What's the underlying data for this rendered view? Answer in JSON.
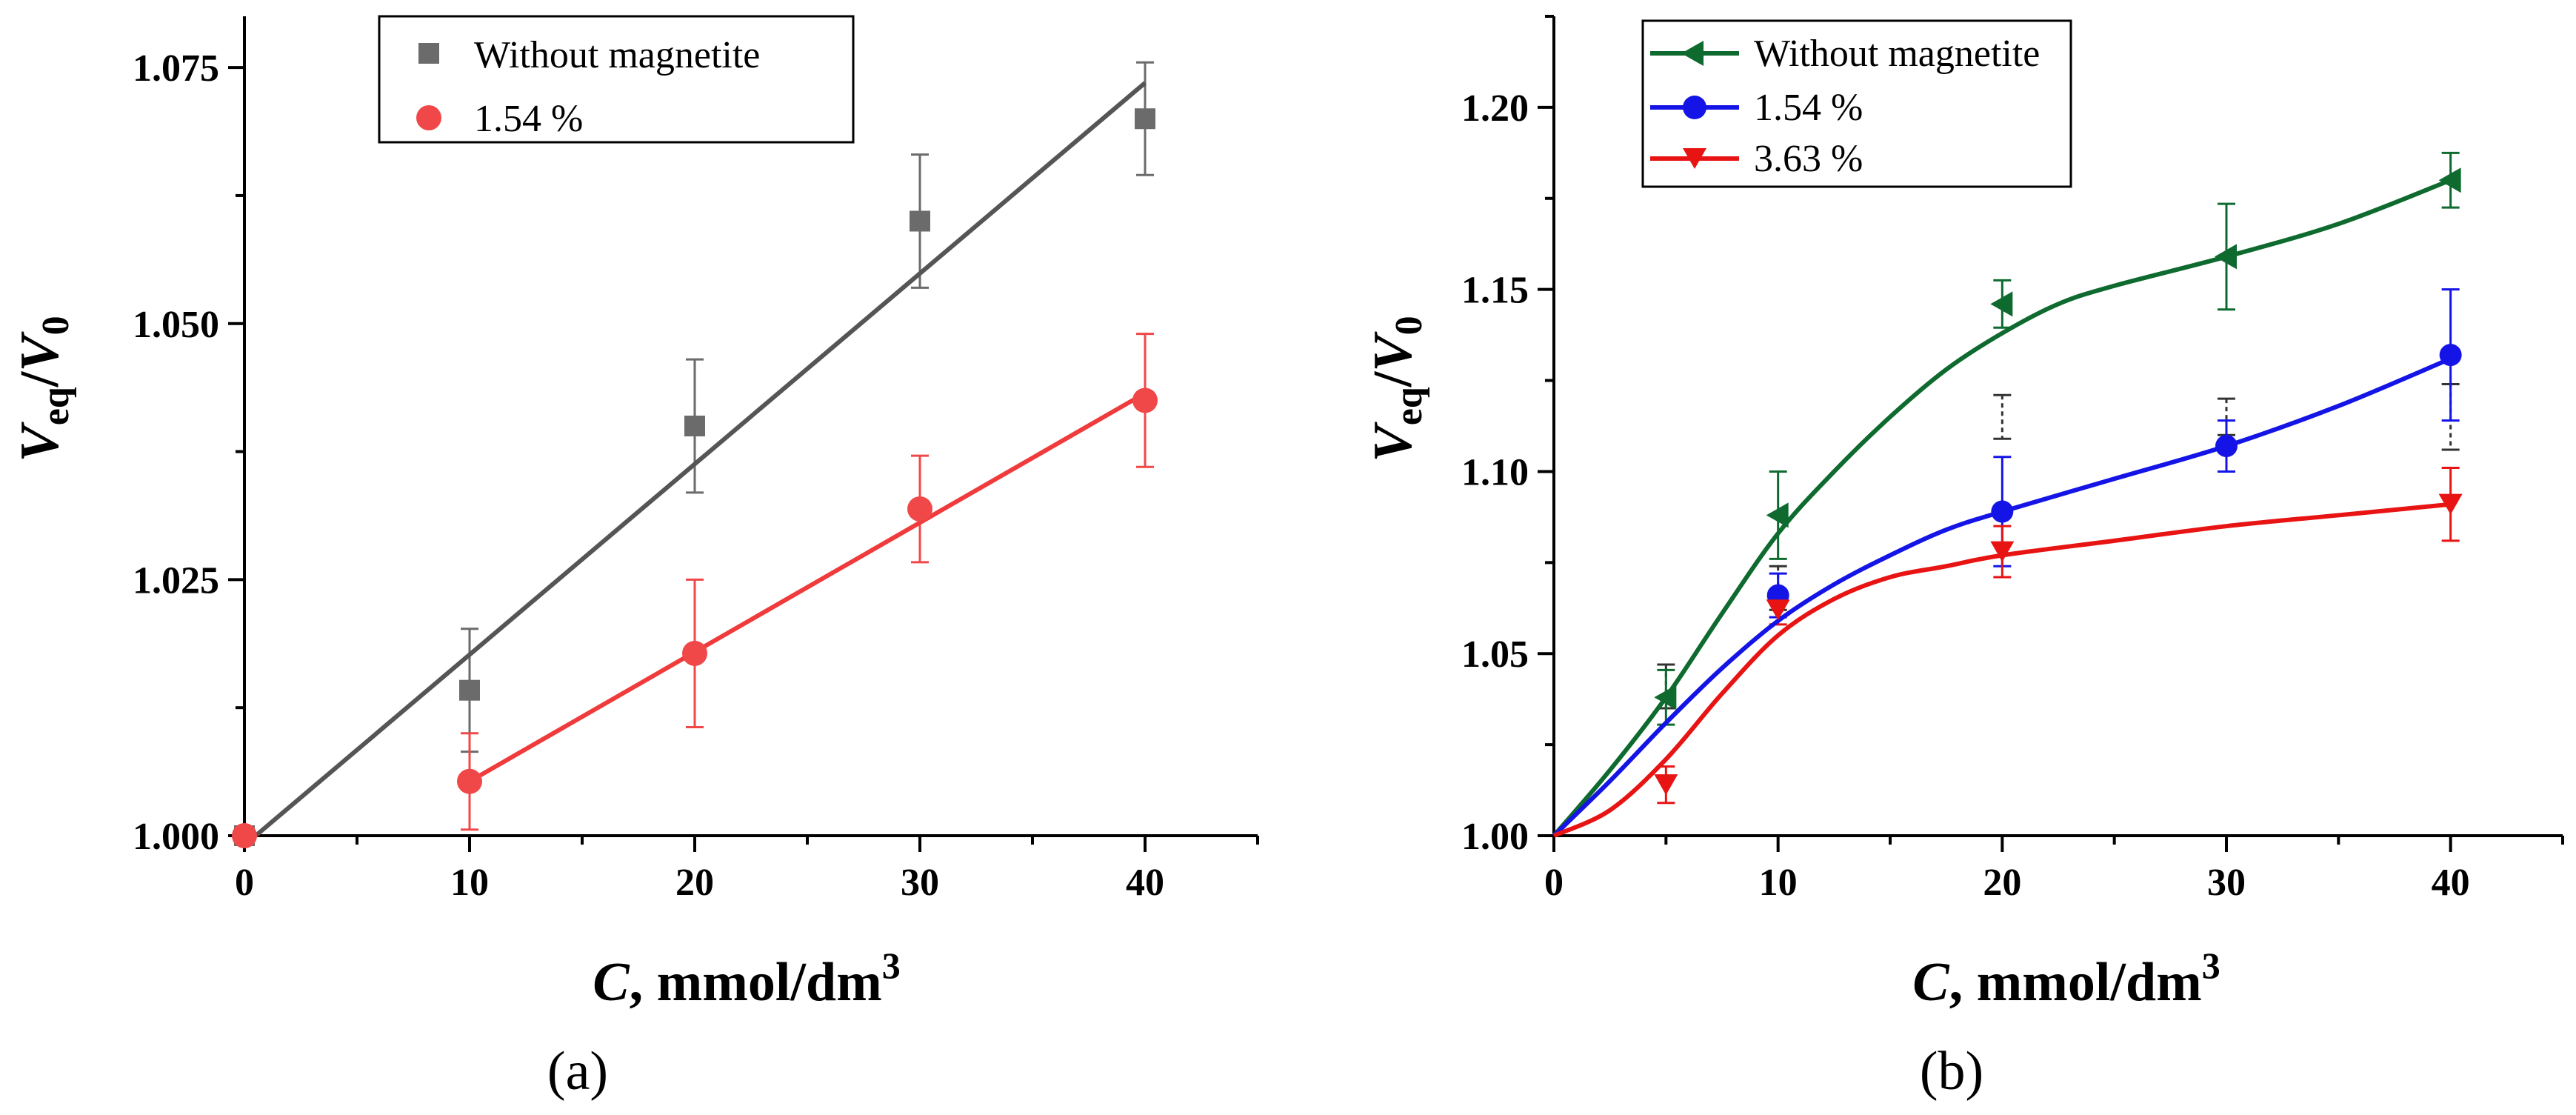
{
  "chart_data": [
    {
      "type": "scatter",
      "panel_label": "(a)",
      "xlabel": "C, mmol/dm³",
      "xlabel_parts": {
        "var": "C",
        "unit": ", mmol/dm",
        "sup": "3"
      },
      "ylabel": "Veq/V0",
      "ylabel_parts": {
        "v1": "V",
        "s1": "eq",
        "slash": "/",
        "v2": "V",
        "s2": "0"
      },
      "xlim": [
        0,
        45
      ],
      "ylim": [
        1.0,
        1.08
      ],
      "xticks": [
        0,
        10,
        20,
        30,
        40
      ],
      "xtick_labels": [
        "0",
        "10",
        "20",
        "30",
        "40"
      ],
      "yticks": [
        1.0,
        1.025,
        1.05,
        1.075
      ],
      "ytick_labels": [
        "1.000",
        "1.025",
        "1.050",
        "1.075"
      ],
      "legend_position": "top-center",
      "series": [
        {
          "name": "Without magnetite",
          "marker": "square",
          "color": "#6b6b6b",
          "fit_color": "#555555",
          "x": [
            0,
            10,
            20,
            30,
            40
          ],
          "y": [
            1.0,
            1.0142,
            1.04,
            1.06,
            1.07
          ],
          "err": [
            0,
            0.006,
            0.0065,
            0.0065,
            0.0055
          ],
          "fit": {
            "kind": "linear",
            "x": [
              0.5,
              40
            ],
            "y": [
              1.0,
              1.0735
            ]
          }
        },
        {
          "name": "1.54 %",
          "marker": "circle",
          "color": "#f04848",
          "fit_color": "#ef3b3b",
          "x": [
            0,
            10,
            20,
            30,
            40
          ],
          "y": [
            1.0,
            1.0053,
            1.0178,
            1.0319,
            1.0425
          ],
          "err": [
            0,
            0.0047,
            0.0072,
            0.0052,
            0.0065
          ],
          "fit": {
            "kind": "linear",
            "x": [
              10,
              40
            ],
            "y": [
              1.0053,
              1.0432
            ]
          }
        }
      ]
    },
    {
      "type": "scatter",
      "panel_label": "(b)",
      "xlabel": "C, mmol/dm³",
      "xlabel_parts": {
        "var": "C",
        "unit": ", mmol/dm",
        "sup": "3"
      },
      "ylabel": "Veq/V0",
      "ylabel_parts": {
        "v1": "V",
        "s1": "eq",
        "slash": "/",
        "v2": "V",
        "s2": "0"
      },
      "xlim": [
        0,
        45
      ],
      "ylim": [
        1.0,
        1.225
      ],
      "xticks": [
        0,
        10,
        20,
        30,
        40
      ],
      "xtick_labels": [
        "0",
        "10",
        "20",
        "30",
        "40"
      ],
      "yticks": [
        1.0,
        1.05,
        1.1,
        1.15,
        1.2
      ],
      "ytick_labels": [
        "1.00",
        "1.05",
        "1.10",
        "1.15",
        "1.20"
      ],
      "legend_position": "top-left",
      "series": [
        {
          "name": "Without magnetite",
          "marker": "triangle-left",
          "color": "#0e6a2e",
          "x": [
            5,
            10,
            20,
            30,
            40
          ],
          "y": [
            1.038,
            1.088,
            1.146,
            1.159,
            1.18
          ],
          "err": [
            0.0075,
            0.012,
            0.0065,
            0.0145,
            0.0075
          ],
          "curve": {
            "x": [
              0,
              2.5,
              5,
              7.5,
              10,
              12.5,
              15,
              17.5,
              20,
              22.5,
              25,
              30,
              35,
              40
            ],
            "y": [
              1.0,
              1.018,
              1.038,
              1.061,
              1.083,
              1.1,
              1.115,
              1.128,
              1.138,
              1.146,
              1.151,
              1.159,
              1.168,
              1.18
            ]
          }
        },
        {
          "name": "1.54 %",
          "marker": "circle",
          "color": "#1414e6",
          "x": [
            10,
            20,
            30,
            40
          ],
          "y": [
            1.066,
            1.089,
            1.107,
            1.132
          ],
          "err": [
            0.006,
            0.015,
            0.007,
            0.018
          ],
          "curve": {
            "x": [
              0,
              2.5,
              5,
              7.5,
              10,
              12.5,
              15,
              17.5,
              20,
              25,
              30,
              35,
              40
            ],
            "y": [
              1.0,
              1.015,
              1.031,
              1.046,
              1.059,
              1.069,
              1.077,
              1.084,
              1.089,
              1.098,
              1.107,
              1.118,
              1.131
            ]
          }
        },
        {
          "name": "3.63 %",
          "marker": "triangle-down",
          "color": "#e81414",
          "x": [
            5,
            10,
            20,
            40
          ],
          "y": [
            1.014,
            1.062,
            1.078,
            1.091
          ],
          "err": [
            0.005,
            0.004,
            0.007,
            0.01
          ],
          "curve": {
            "x": [
              0,
              2.5,
              5,
              7.5,
              10,
              12.5,
              15,
              17.5,
              20,
              25,
              30,
              35,
              40
            ],
            "y": [
              1.0,
              1.007,
              1.021,
              1.039,
              1.055,
              1.065,
              1.071,
              1.074,
              1.077,
              1.081,
              1.085,
              1.088,
              1.091
            ]
          }
        }
      ],
      "extra_error_bars": {
        "color": "#333333",
        "x": [
          5,
          10,
          20,
          30,
          40
        ],
        "y": [
          1.041,
          1.068,
          1.115,
          1.115,
          1.115
        ],
        "err": [
          0.006,
          0.006,
          0.006,
          0.005,
          0.009
        ]
      }
    }
  ]
}
